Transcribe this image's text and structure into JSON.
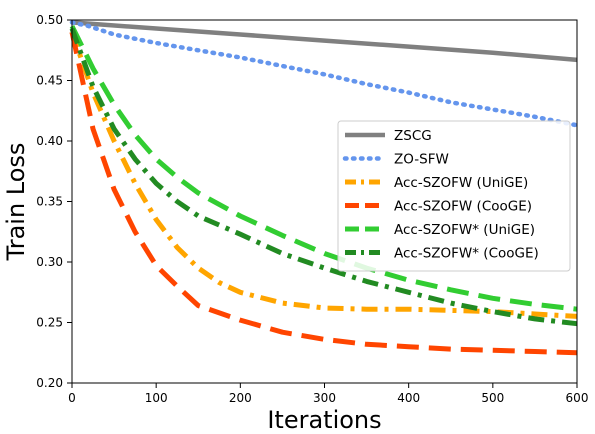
{
  "chart_data": {
    "type": "line",
    "title": "",
    "xlabel": "Iterations",
    "ylabel": "Train Loss",
    "xlim": [
      0,
      600
    ],
    "ylim": [
      0.2,
      0.5
    ],
    "xticks": [
      "0",
      "100",
      "200",
      "300",
      "400",
      "500",
      "600"
    ],
    "yticks": [
      "0.20",
      "0.25",
      "0.30",
      "0.35",
      "0.40",
      "0.45",
      "0.50"
    ],
    "grid": false,
    "legend_position": "center-right",
    "series": [
      {
        "name": "ZSCG",
        "color": "#808080",
        "dash": "solid",
        "x": [
          0,
          100,
          200,
          300,
          400,
          500,
          600
        ],
        "y": [
          0.498,
          0.493,
          0.488,
          0.483,
          0.478,
          0.473,
          0.467
        ]
      },
      {
        "name": "ZO-SFW",
        "color": "#6495ED",
        "dash": "dotted",
        "x": [
          0,
          20,
          50,
          100,
          150,
          200,
          250,
          300,
          350,
          400,
          450,
          500,
          550,
          600
        ],
        "y": [
          0.498,
          0.495,
          0.488,
          0.481,
          0.475,
          0.469,
          0.462,
          0.455,
          0.447,
          0.44,
          0.432,
          0.426,
          0.42,
          0.413
        ]
      },
      {
        "name": "Acc-SZOFW (UniGE)",
        "color": "#FFA500",
        "dash": "dashdot",
        "x": [
          0,
          25,
          50,
          75,
          100,
          125,
          150,
          175,
          200,
          250,
          300,
          350,
          400,
          450,
          500,
          550,
          600
        ],
        "y": [
          0.49,
          0.44,
          0.4,
          0.365,
          0.335,
          0.312,
          0.295,
          0.283,
          0.275,
          0.266,
          0.262,
          0.261,
          0.261,
          0.26,
          0.259,
          0.257,
          0.255
        ]
      },
      {
        "name": "Acc-SZOFW (CooGE)",
        "color": "#FF4500",
        "dash": "dashed",
        "x": [
          0,
          25,
          50,
          75,
          100,
          125,
          150,
          200,
          250,
          300,
          350,
          400,
          450,
          500,
          550,
          600
        ],
        "y": [
          0.49,
          0.41,
          0.36,
          0.325,
          0.297,
          0.28,
          0.264,
          0.252,
          0.242,
          0.236,
          0.232,
          0.23,
          0.228,
          0.227,
          0.226,
          0.225
        ]
      },
      {
        "name": "Acc-SZOFW* (UniGE)",
        "color": "#32CD32",
        "dash": "dashed",
        "x": [
          0,
          25,
          50,
          75,
          100,
          125,
          150,
          200,
          250,
          300,
          350,
          400,
          450,
          500,
          550,
          600
        ],
        "y": [
          0.495,
          0.46,
          0.43,
          0.405,
          0.385,
          0.37,
          0.357,
          0.338,
          0.322,
          0.307,
          0.295,
          0.285,
          0.277,
          0.27,
          0.265,
          0.261
        ]
      },
      {
        "name": "Acc-SZOFW* (CooGE)",
        "color": "#228B22",
        "dash": "dashdot",
        "x": [
          0,
          25,
          50,
          75,
          100,
          125,
          150,
          200,
          250,
          300,
          350,
          400,
          450,
          500,
          550,
          600
        ],
        "y": [
          0.493,
          0.445,
          0.41,
          0.385,
          0.365,
          0.35,
          0.338,
          0.323,
          0.307,
          0.295,
          0.284,
          0.275,
          0.266,
          0.259,
          0.253,
          0.249
        ]
      }
    ]
  }
}
